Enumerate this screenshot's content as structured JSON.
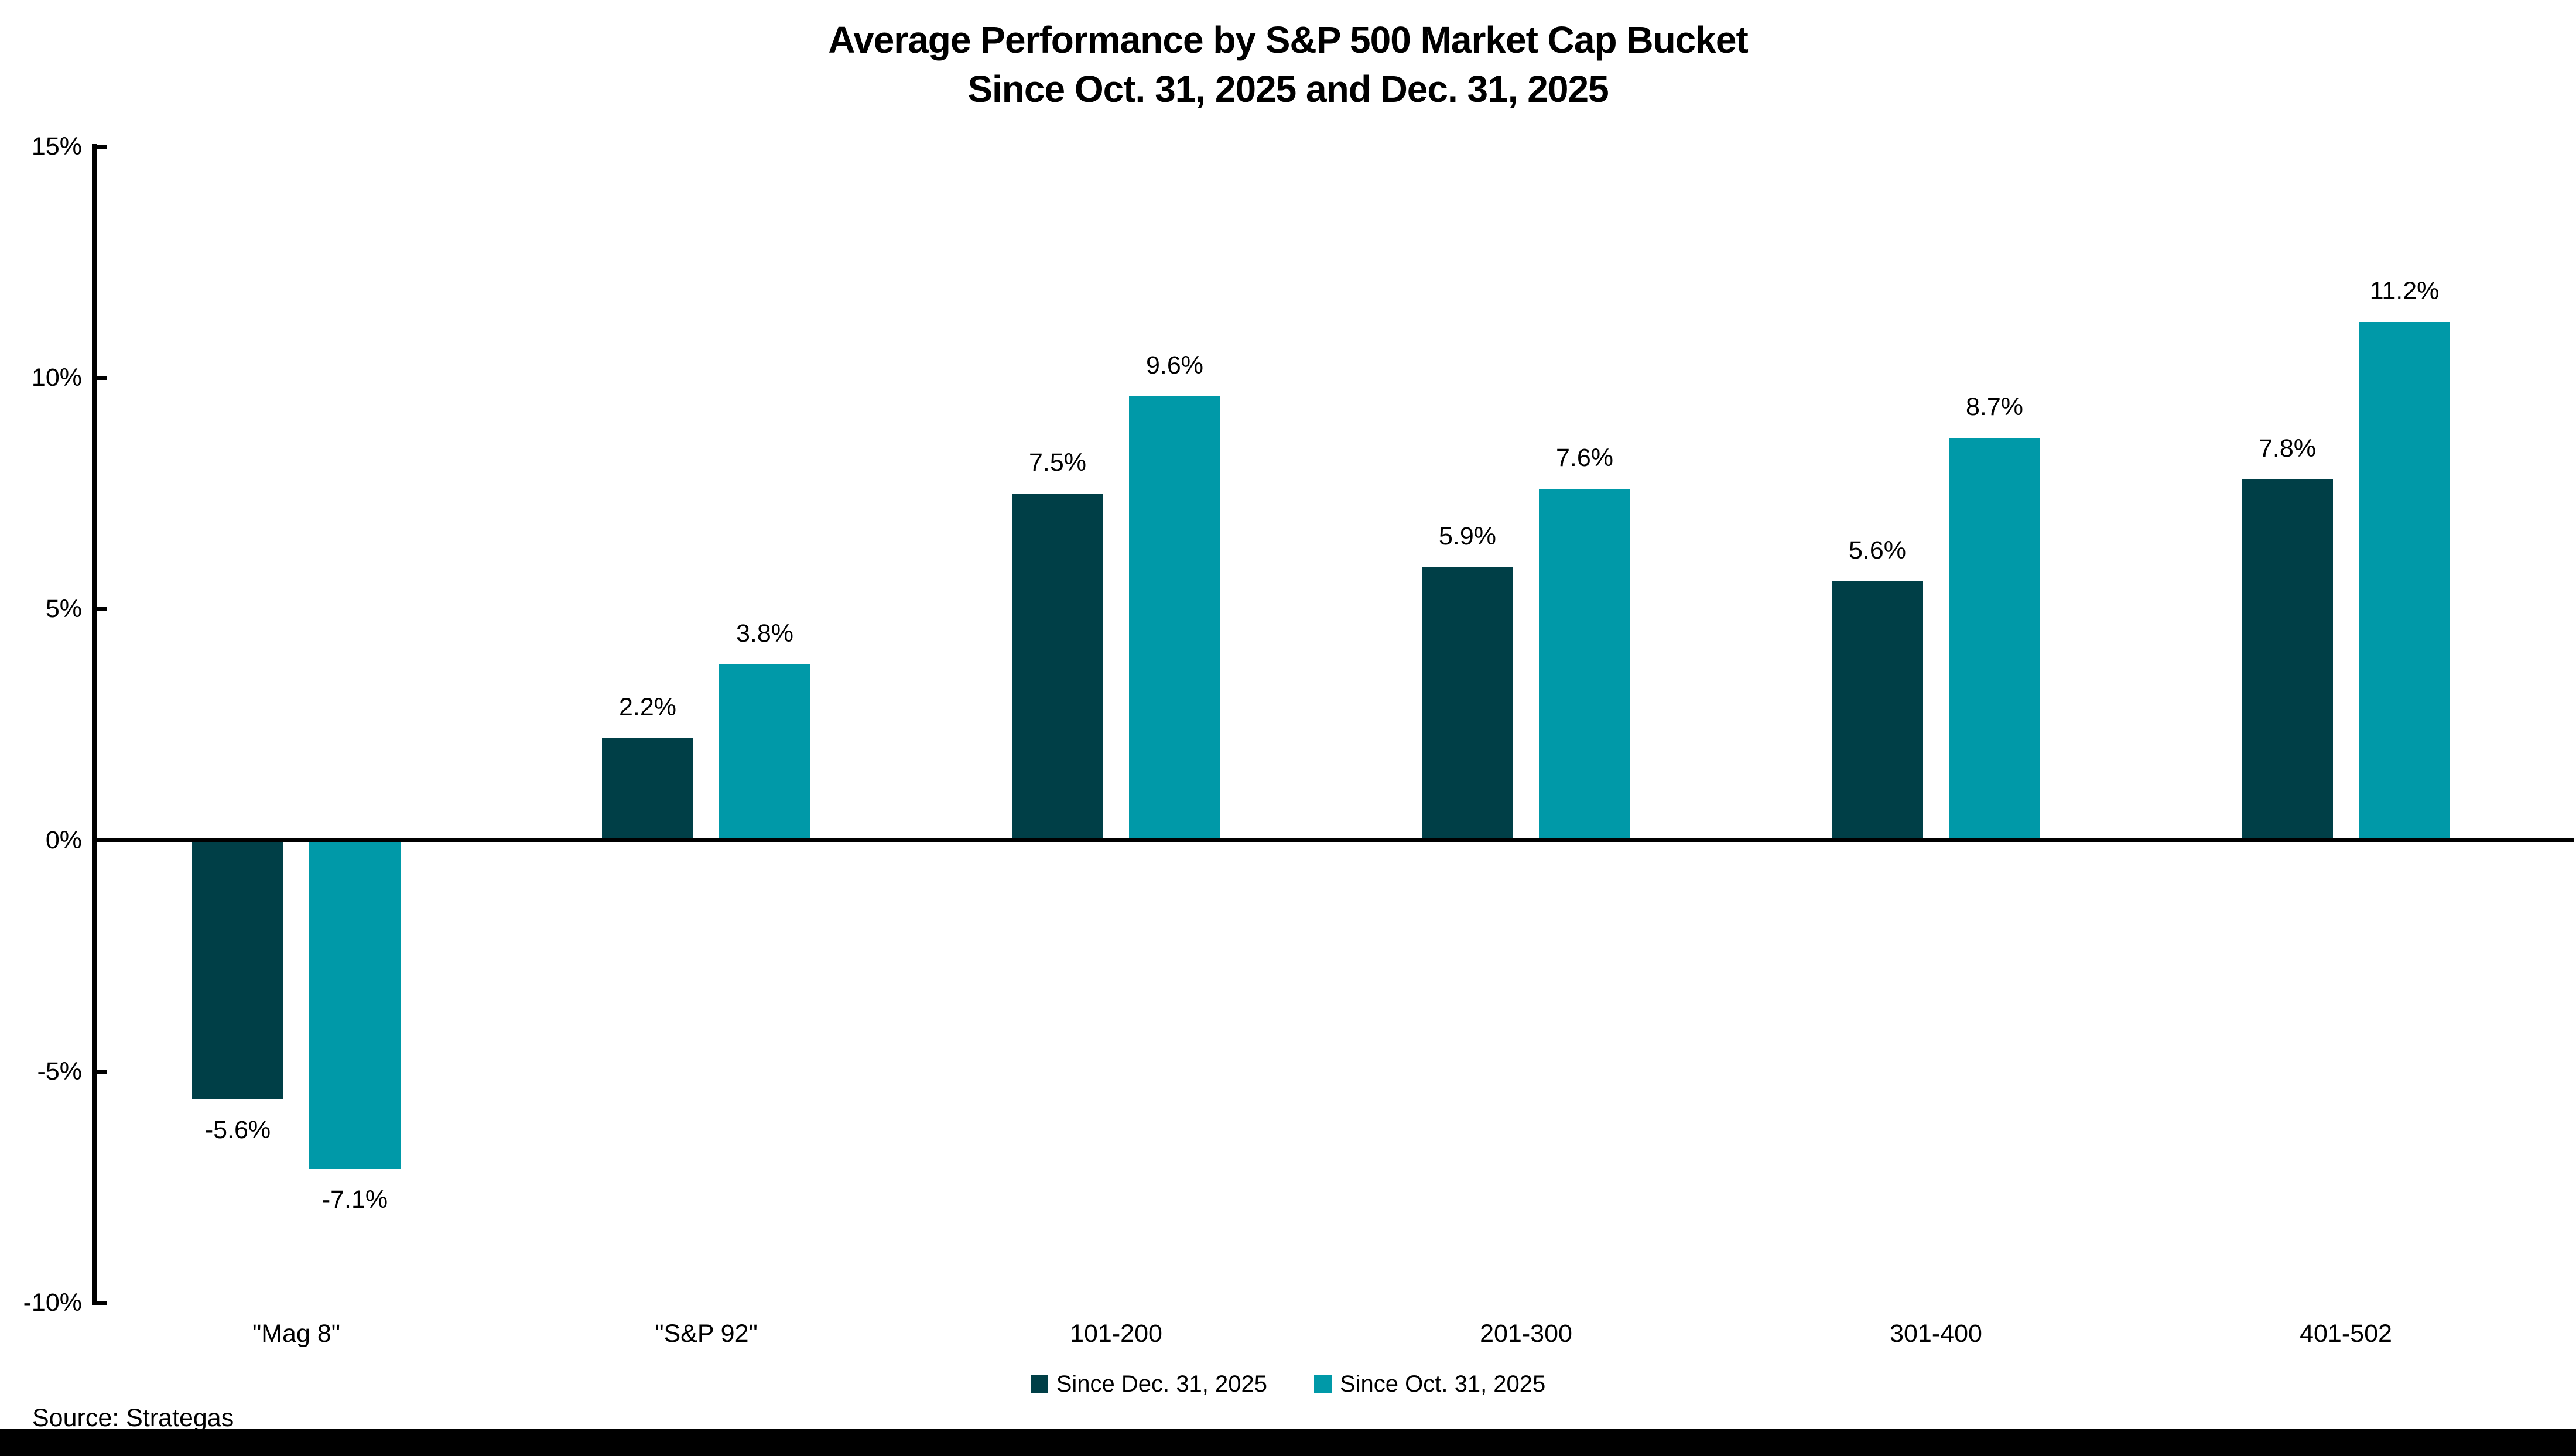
{
  "page": {
    "background": "#ffffff",
    "footer_bar_color": "#000000"
  },
  "chart_data": {
    "type": "bar",
    "title": "Average Performance by S&P 500 Market Cap Bucket",
    "subtitle": "Since Oct. 31, 2025 and Dec. 31, 2025",
    "categories": [
      "\"Mag 8\"",
      "\"S&P 92\"",
      "101-200",
      "201-300",
      "301-400",
      "401-502"
    ],
    "series": [
      {
        "name": "Since Dec. 31, 2025",
        "color": "#003F47",
        "values": [
          -5.6,
          2.2,
          7.5,
          5.9,
          5.6,
          7.8
        ]
      },
      {
        "name": "Since Oct. 31, 2025",
        "color": "#0099A8",
        "values": [
          -7.1,
          3.8,
          9.6,
          7.6,
          8.7,
          11.2
        ]
      }
    ],
    "value_label_suffix": "%",
    "ylim": [
      -10,
      15
    ],
    "yticks": [
      15,
      10,
      5,
      0,
      -5,
      -10
    ],
    "ytick_labels": [
      "15%",
      "10%",
      "5%",
      "0%",
      "-5%",
      "-10%"
    ],
    "grid": false,
    "legend_position": "bottom-center"
  },
  "source": {
    "label": "Source: Strategas"
  }
}
